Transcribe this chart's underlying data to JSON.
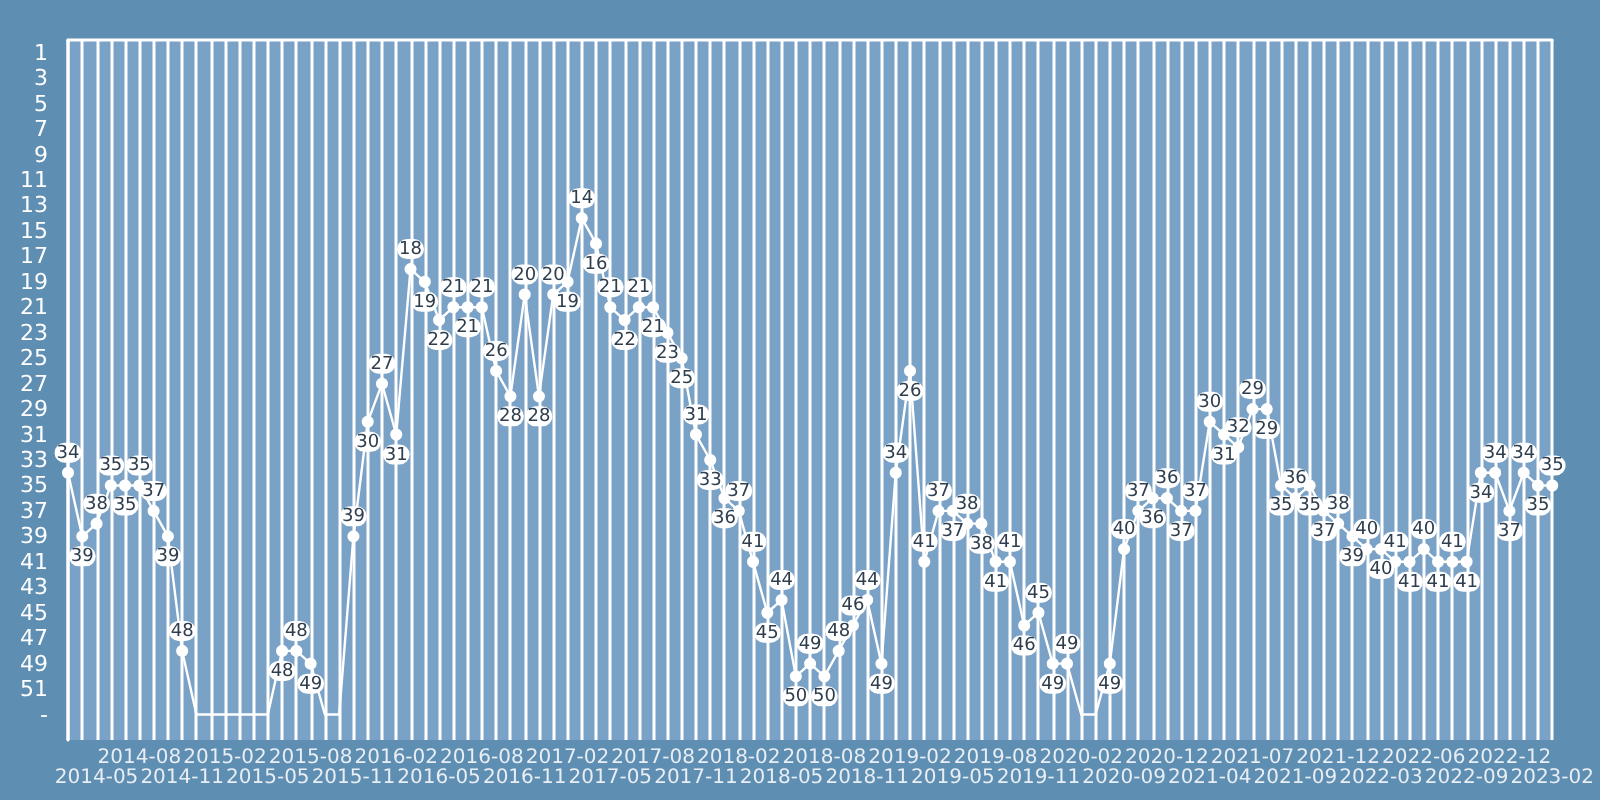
{
  "chart_data": {
    "type": "line",
    "categories": [
      null,
      null,
      "2014-05",
      null,
      null,
      "2014-08",
      null,
      null,
      "2014-11",
      null,
      null,
      "2015-02",
      null,
      null,
      "2015-05",
      null,
      null,
      "2015-08",
      null,
      null,
      "2015-11",
      null,
      null,
      "2016-02",
      null,
      null,
      "2016-05",
      null,
      null,
      "2016-08",
      null,
      null,
      "2016-11",
      null,
      null,
      "2017-02",
      null,
      null,
      "2017-05",
      null,
      null,
      "2017-08",
      null,
      null,
      "2017-11",
      null,
      null,
      "2018-02",
      null,
      null,
      "2018-05",
      null,
      null,
      "2018-08",
      null,
      null,
      "2018-11",
      null,
      null,
      "2019-02",
      null,
      null,
      "2019-05",
      null,
      null,
      "2019-08",
      null,
      null,
      "2019-11",
      null,
      null,
      "2020-02",
      null,
      null,
      "2020-09",
      null,
      null,
      "2020-12",
      null,
      null,
      "2021-04",
      null,
      null,
      "2021-07",
      null,
      null,
      "2021-09",
      null,
      null,
      "2021-12",
      null,
      null,
      "2022-03",
      null,
      null,
      "2022-06",
      null,
      null,
      "2022-09",
      null,
      null,
      "2022-12",
      null,
      null,
      "2023-02"
    ],
    "series": [
      {
        "color": "#ffffff",
        "values": [
          34,
          39,
          38,
          35,
          35,
          35,
          37,
          39,
          48,
          53,
          53,
          53,
          53,
          53,
          53,
          48,
          48,
          49,
          53,
          53,
          39,
          30,
          27,
          31,
          18,
          19,
          22,
          21,
          21,
          21,
          26,
          28,
          20,
          28,
          20,
          19,
          14,
          16,
          21,
          22,
          21,
          21,
          23,
          25,
          31,
          33,
          36,
          37,
          41,
          45,
          44,
          50,
          49,
          50,
          48,
          46,
          44,
          49,
          34,
          26,
          41,
          37,
          37,
          38,
          38,
          41,
          41,
          46,
          45,
          49,
          49,
          53,
          53,
          49,
          40,
          37,
          36,
          36,
          37,
          37,
          30,
          31,
          32,
          29,
          29,
          35,
          36,
          35,
          37,
          38,
          39,
          40,
          40,
          41,
          41,
          40,
          41,
          41,
          41,
          34,
          34,
          37,
          34,
          35,
          35
        ],
        "value_labels": [
          "34",
          "39",
          "38",
          "35",
          "35",
          "35",
          "37",
          "39",
          "48",
          null,
          null,
          null,
          null,
          null,
          null,
          "48",
          "48",
          "49",
          null,
          null,
          "39",
          "30",
          "27",
          "31",
          "18",
          "19",
          "22",
          "21",
          "21",
          "21",
          "26",
          "28",
          "20",
          "28",
          "20",
          "19",
          "14",
          "16",
          "21",
          "22",
          "21",
          "21",
          "23",
          "25",
          "31",
          "33",
          "36",
          "37",
          "41",
          "45",
          "44",
          "50",
          "49",
          "50",
          "48",
          "46",
          "44",
          "49",
          "34",
          "26",
          "41",
          "37",
          "37",
          "38",
          "38",
          "41",
          "41",
          "46",
          "45",
          "49",
          "49",
          null,
          null,
          "49",
          "40",
          "37",
          "36",
          "36",
          "37",
          "37",
          "30",
          "31",
          "32",
          "29",
          "29",
          "35",
          "36",
          "35",
          "37",
          "38",
          "39",
          "40",
          "40",
          "41",
          "41",
          "40",
          "41",
          "41",
          "41",
          "34",
          "34",
          "37",
          "34",
          "35",
          "35"
        ]
      }
    ],
    "ylim": [
      55,
      0
    ],
    "yticks": [
      1,
      3,
      5,
      7,
      9,
      11,
      13,
      15,
      17,
      19,
      21,
      23,
      25,
      27,
      29,
      31,
      33,
      35,
      37,
      39,
      41,
      43,
      45,
      47,
      49,
      51,
      {
        "value": 53,
        "label": "-"
      }
    ],
    "grid": "x",
    "marker": "circle",
    "line_style": "solid"
  }
}
